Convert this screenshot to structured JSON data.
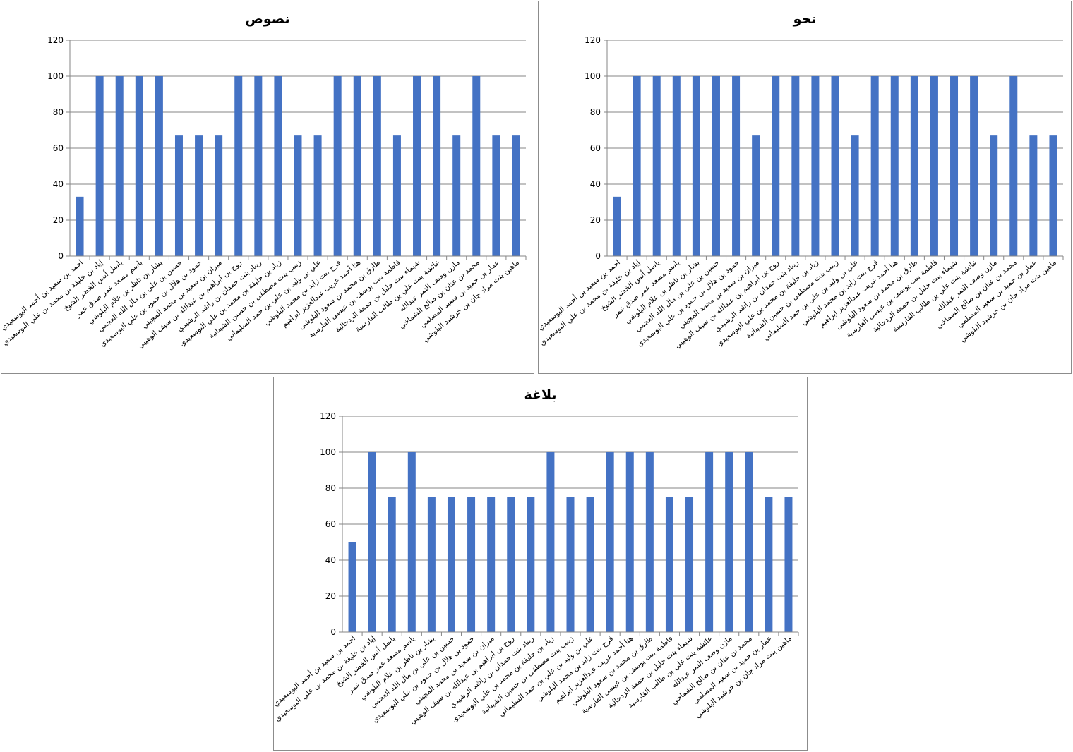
{
  "style": {
    "bar_color": "#4472C4",
    "grid_color": "#868686",
    "axis_color": "#868686"
  },
  "names": [
    "احمد بن سعيد بن أحمد البوسعيدي",
    "إياد بن خليفة بن محمد بن علي البوسعيدي",
    "باسل أنس الخضر الشيخ",
    "باسم مسعد عمر صدق عمر",
    "بشار بن ناظر بن علام البلوشي",
    "حسين بن علي بن مال الله العجمي",
    "حمود بن هلال بن حمود بن علي البوسعيدي",
    "ميران بن سعيد بن محمد المجيني",
    "روح بن ابراهيم بن عبدالله بن سيف الوهيبي",
    "ريناد بنت حمدان بن راشد الرشيدي",
    "زياد بن خليفة بن محمد بن علي البوسعيدي",
    "زينب بنت مصطفى بن حسين الشيبانية",
    "علي بن وليد بن علي بن حمد السليماني",
    "فرح بنت زايد بن محمد البلوشي",
    "هنا أحمد غريب عبدالعزيز ابراهيم",
    "طارق بن محمد بن سعود البلوشي",
    "فاطمة بنت يوسف بن عيسى الفارسية",
    "شيماء بنت خليل بن جمعة الزدجالية",
    "عائشة بنت علي بن طالب الفارسية",
    "مازن وصف النمر عبدالله",
    "محمد بن عنان بن صالح الشماخي",
    "عمار بن حميد بن سعيد المسلمي",
    "ماهين بنت مراد جان بن خرشيد البلوشي"
  ],
  "chart_data": [
    {
      "type": "bar",
      "title": "نصوص",
      "categories_ref": "names",
      "values": [
        33,
        100,
        100,
        100,
        100,
        67,
        67,
        67,
        100,
        100,
        100,
        67,
        67,
        100,
        100,
        100,
        67,
        100,
        100,
        67,
        100,
        67,
        67
      ],
      "ylim": [
        0,
        120
      ],
      "yticks": [
        "0",
        "20",
        "40",
        "60",
        "80",
        "100",
        "120"
      ],
      "grid": true,
      "legend": false
    },
    {
      "type": "bar",
      "title": "نحو",
      "categories_ref": "names",
      "values": [
        33,
        100,
        100,
        100,
        100,
        100,
        100,
        67,
        100,
        100,
        100,
        100,
        67,
        100,
        100,
        100,
        100,
        100,
        100,
        67,
        100,
        67,
        67
      ],
      "ylim": [
        0,
        120
      ],
      "yticks": [
        "0",
        "20",
        "40",
        "60",
        "80",
        "100",
        "120"
      ],
      "grid": true,
      "legend": false
    },
    {
      "type": "bar",
      "title": "بلاغة",
      "categories_ref": "names",
      "values": [
        50,
        100,
        75,
        100,
        75,
        75,
        75,
        75,
        75,
        75,
        100,
        75,
        75,
        100,
        100,
        100,
        75,
        75,
        100,
        100,
        100,
        75,
        75
      ],
      "ylim": [
        0,
        120
      ],
      "yticks": [
        "0",
        "20",
        "40",
        "60",
        "80",
        "100",
        "120"
      ],
      "grid": true,
      "legend": false
    }
  ]
}
